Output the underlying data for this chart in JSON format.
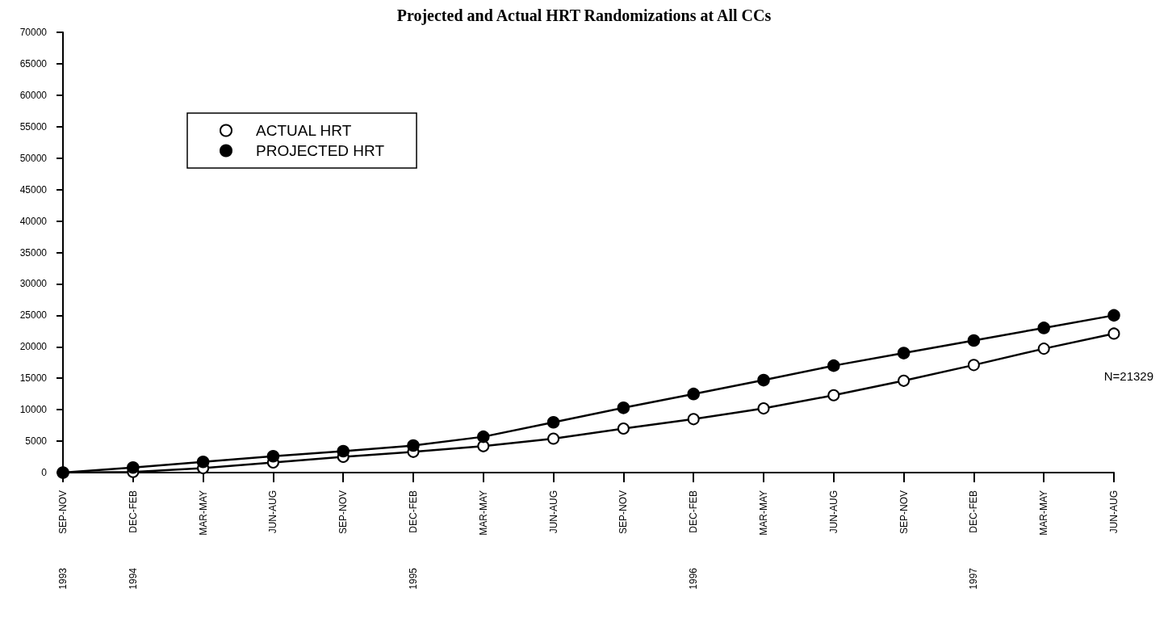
{
  "chart_data": {
    "type": "line",
    "title": "Projected and Actual HRT Randomizations at All CCs",
    "categories": [
      "SEP-NOV\n1993",
      "DEC-FEB\n1994",
      "MAR-MAY",
      "JUN-AUG",
      "SEP-NOV",
      "DEC-FEB\n1995",
      "MAR-MAY",
      "JUN-AUG",
      "SEP-NOV",
      "DEC-FEB\n1996",
      "MAR-MAY",
      "JUN-AUG",
      "SEP-NOV",
      "DEC-FEB\n1997",
      "MAR-MAY",
      "JUN-AUG"
    ],
    "series": [
      {
        "name": "ACTUAL HRT",
        "color": "#000000",
        "marker": "open circle",
        "values": [
          0,
          100,
          700,
          1600,
          2500,
          3300,
          4200,
          5400,
          7000,
          8500,
          10200,
          12300,
          14600,
          17100,
          19700,
          22100
        ]
      },
      {
        "name": "PROJECTED HRT",
        "color": "#000000",
        "marker": "circle",
        "values": [
          0,
          800,
          1700,
          2600,
          3400,
          4300,
          5700,
          8000,
          10300,
          12500,
          14700,
          17000,
          19000,
          21000,
          23000,
          25000
        ]
      }
    ],
    "ylim": [
      0,
      70000
    ],
    "yticks": [
      0,
      5000,
      10000,
      15000,
      20000,
      25000,
      30000,
      35000,
      40000,
      45000,
      50000,
      55000,
      60000,
      65000,
      70000
    ],
    "grid": false,
    "legend": "top left",
    "line_style": "solid",
    "annotations": [
      "N=21329"
    ]
  }
}
